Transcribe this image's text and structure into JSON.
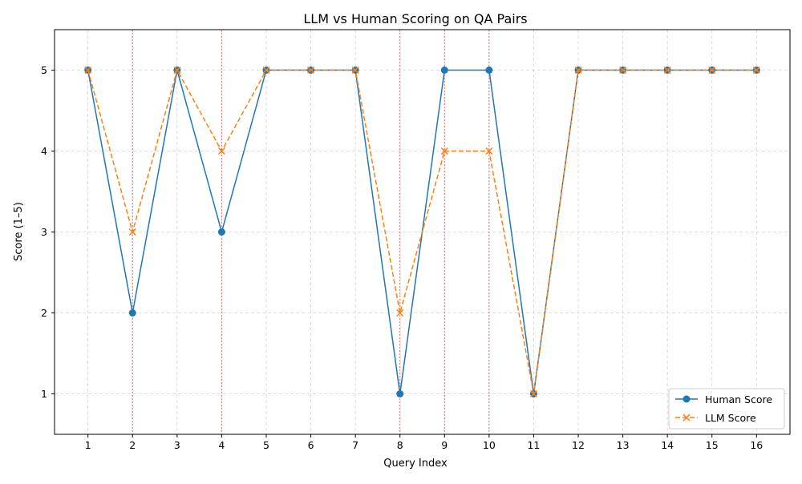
{
  "chart_data": {
    "type": "line",
    "title": "LLM vs Human Scoring on QA Pairs",
    "xlabel": "Query Index",
    "ylabel": "Score (1–5)",
    "x": [
      1,
      2,
      3,
      4,
      5,
      6,
      7,
      8,
      9,
      10,
      11,
      12,
      13,
      14,
      15,
      16
    ],
    "xlim": [
      0.25,
      16.75
    ],
    "ylim": [
      0.5,
      5.5
    ],
    "yticks": [
      1,
      2,
      3,
      4,
      5
    ],
    "grid": true,
    "legend_position": "lower-right",
    "series": [
      {
        "name": "Human Score",
        "values": [
          5,
          2,
          5,
          3,
          5,
          5,
          5,
          1,
          5,
          5,
          1,
          5,
          5,
          5,
          5,
          5
        ],
        "color": "#1f77b4",
        "line_style": "solid",
        "marker": "circle"
      },
      {
        "name": "LLM Score",
        "values": [
          5,
          3,
          5,
          4,
          5,
          5,
          5,
          2,
          4,
          4,
          1,
          5,
          5,
          5,
          5,
          5
        ],
        "color": "#ff7f0e",
        "line_style": "dashed",
        "marker": "x"
      }
    ],
    "mismatch_highlight": {
      "x": [
        2,
        4,
        8,
        9,
        10
      ],
      "color": "#d62728",
      "line_style": "dotted"
    }
  }
}
